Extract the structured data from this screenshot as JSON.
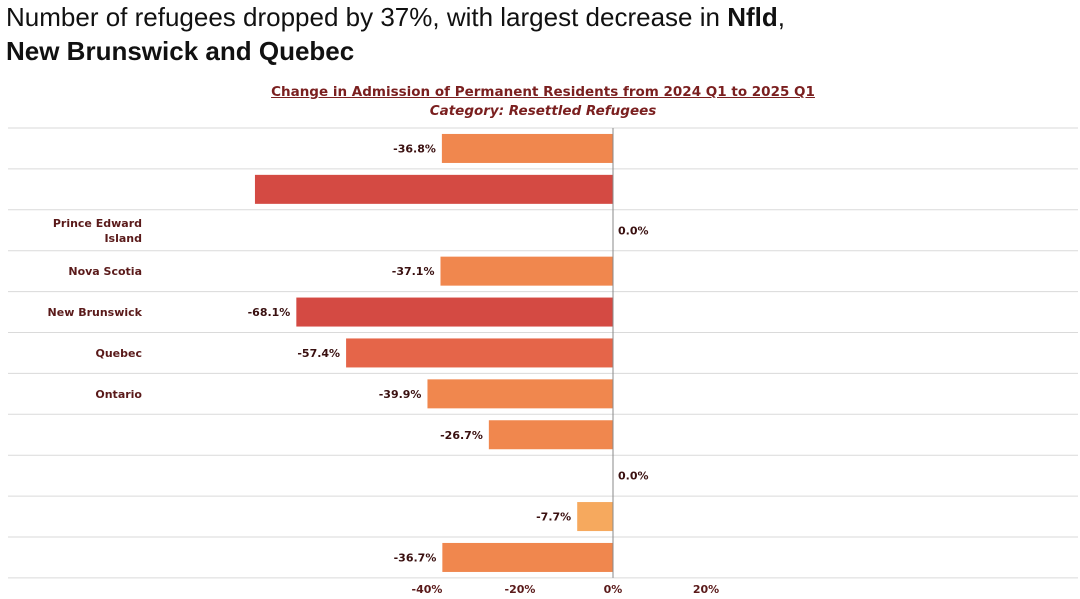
{
  "headline": {
    "line1_plain": "Number of refugees dropped by 37%, with largest decrease in ",
    "line1_bold": "Nfld",
    "line1_end": ",",
    "line2_bold": "New Brunswick and Quebec"
  },
  "chart_data": {
    "type": "bar",
    "orientation": "horizontal",
    "title": "Change in Admission of Permanent Residents from 2024 Q1 to 2025 Q1",
    "subtitle": "Category: Resettled Refugees",
    "categories": [
      "",
      "",
      "Prince Edward Island",
      "Nova Scotia",
      "New Brunswick",
      "Quebec",
      "Ontario",
      "",
      "",
      "",
      ""
    ],
    "category_lines": [
      [
        ""
      ],
      [
        ""
      ],
      [
        "Prince Edward",
        "Island"
      ],
      [
        "Nova Scotia"
      ],
      [
        "New Brunswick"
      ],
      [
        "Quebec"
      ],
      [
        "Ontario"
      ],
      [
        ""
      ],
      [
        ""
      ],
      [
        ""
      ],
      [
        ""
      ]
    ],
    "values": [
      -36.8,
      -77.0,
      0.0,
      -37.1,
      -68.1,
      -57.4,
      -39.9,
      -26.7,
      0.0,
      -7.7,
      -36.7
    ],
    "labels": [
      "-36.8%",
      "",
      "0.0%",
      "-37.1%",
      "-68.1%",
      "-57.4%",
      "-39.9%",
      "-26.7%",
      "0.0%",
      "-7.7%",
      "-36.7%"
    ],
    "bar_colors": [
      "#f0874e",
      "#d44a43",
      "#f0874e",
      "#f0874e",
      "#d44a43",
      "#e56549",
      "#f0874e",
      "#f0874e",
      "#f0874e",
      "#f6a95e",
      "#f0874e"
    ],
    "x_ticks": [
      -40,
      -20,
      0,
      20
    ],
    "x_tick_labels": [
      "-40%",
      "-20%",
      "0%",
      "20%"
    ],
    "xlim": [
      -77,
      44
    ],
    "grid": "horizontal row separators"
  }
}
